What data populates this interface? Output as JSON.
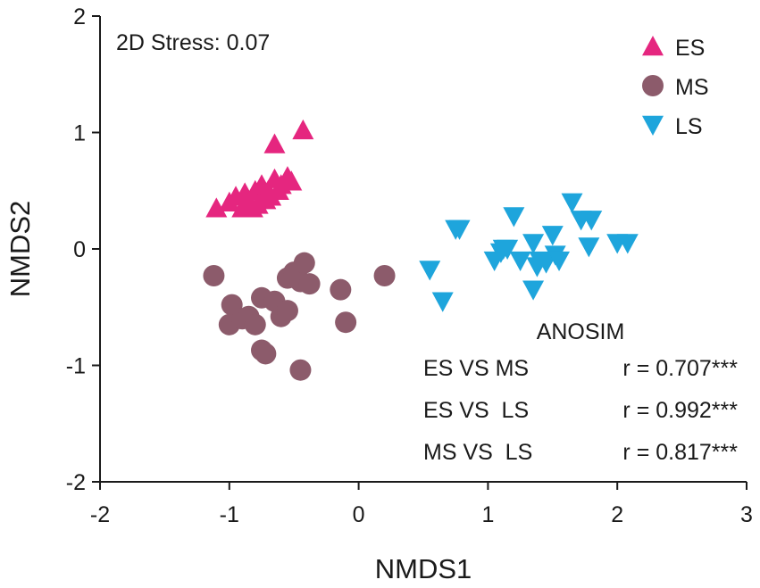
{
  "chart_data": {
    "type": "scatter",
    "title": "",
    "xlabel": "NMDS1",
    "ylabel": "NMDS2",
    "xlim": [
      -2,
      3
    ],
    "ylim": [
      -2,
      2
    ],
    "xticks": [
      -2,
      -1,
      0,
      1,
      2,
      3
    ],
    "yticks": [
      -2,
      -1,
      0,
      1,
      2
    ],
    "xtick_labels": [
      "-2",
      "-1",
      "0",
      "1",
      "2",
      "3"
    ],
    "ytick_labels": [
      "-2",
      "-1",
      "0",
      "1",
      "2"
    ],
    "grid": false,
    "legend_position": "top-right",
    "stress_label": "2D Stress: 0.07",
    "series": [
      {
        "name": "ES",
        "marker": "triangle-up",
        "color": "#e5267f",
        "points": [
          [
            -1.1,
            0.35
          ],
          [
            -1.0,
            0.4
          ],
          [
            -0.95,
            0.45
          ],
          [
            -0.9,
            0.35
          ],
          [
            -0.88,
            0.48
          ],
          [
            -0.85,
            0.4
          ],
          [
            -0.82,
            0.35
          ],
          [
            -0.8,
            0.5
          ],
          [
            -0.78,
            0.38
          ],
          [
            -0.75,
            0.55
          ],
          [
            -0.72,
            0.42
          ],
          [
            -0.7,
            0.5
          ],
          [
            -0.68,
            0.45
          ],
          [
            -0.65,
            0.6
          ],
          [
            -0.62,
            0.5
          ],
          [
            -0.6,
            0.55
          ],
          [
            -0.55,
            0.62
          ],
          [
            -0.52,
            0.58
          ],
          [
            -0.65,
            0.9
          ],
          [
            -0.43,
            1.02
          ]
        ]
      },
      {
        "name": "MS",
        "marker": "circle",
        "color": "#8c5b6b",
        "points": [
          [
            -1.12,
            -0.23
          ],
          [
            -0.98,
            -0.48
          ],
          [
            -1.0,
            -0.65
          ],
          [
            -0.9,
            -0.6
          ],
          [
            -0.85,
            -0.58
          ],
          [
            -0.8,
            -0.65
          ],
          [
            -0.75,
            -0.42
          ],
          [
            -0.75,
            -0.87
          ],
          [
            -0.72,
            -0.9
          ],
          [
            -0.65,
            -0.45
          ],
          [
            -0.6,
            -0.58
          ],
          [
            -0.55,
            -0.53
          ],
          [
            -0.55,
            -0.25
          ],
          [
            -0.5,
            -0.2
          ],
          [
            -0.45,
            -0.28
          ],
          [
            -0.42,
            -0.12
          ],
          [
            -0.38,
            -0.3
          ],
          [
            -0.45,
            -1.04
          ],
          [
            -0.14,
            -0.35
          ],
          [
            -0.1,
            -0.63
          ],
          [
            0.2,
            -0.23
          ]
        ]
      },
      {
        "name": "LS",
        "marker": "triangle-down",
        "color": "#1ea5dc",
        "points": [
          [
            0.55,
            -0.18
          ],
          [
            0.65,
            -0.45
          ],
          [
            0.75,
            0.17
          ],
          [
            0.78,
            0.17
          ],
          [
            1.05,
            -0.1
          ],
          [
            1.1,
            -0.03
          ],
          [
            1.12,
            0.0
          ],
          [
            1.15,
            0.0
          ],
          [
            1.2,
            0.28
          ],
          [
            1.25,
            -0.1
          ],
          [
            1.35,
            0.05
          ],
          [
            1.35,
            -0.35
          ],
          [
            1.38,
            -0.15
          ],
          [
            1.4,
            -0.1
          ],
          [
            1.45,
            -0.12
          ],
          [
            1.5,
            0.12
          ],
          [
            1.52,
            -0.05
          ],
          [
            1.55,
            -0.1
          ],
          [
            1.65,
            0.4
          ],
          [
            1.72,
            0.25
          ],
          [
            1.78,
            0.02
          ],
          [
            1.8,
            0.25
          ],
          [
            2.0,
            0.05
          ],
          [
            2.08,
            0.05
          ]
        ]
      }
    ],
    "anosim": {
      "title": "ANOSIM",
      "rows": [
        {
          "pair": "ES VS MS",
          "r": "r = 0.707***"
        },
        {
          "pair": "ES VS  LS",
          "r": "r = 0.992***"
        },
        {
          "pair": "MS VS  LS",
          "r": "r = 0.817***"
        }
      ]
    }
  }
}
